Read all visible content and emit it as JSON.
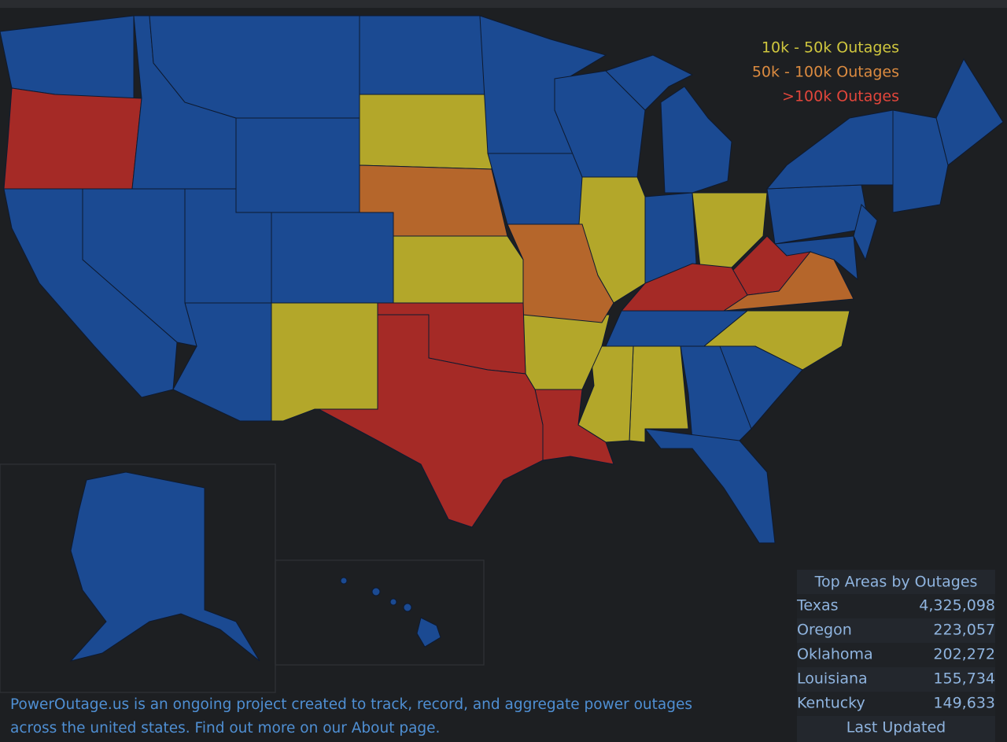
{
  "legend": [
    {
      "label": "10k - 50k Outages",
      "color": "#cfc63e",
      "fill": "#b3a72a"
    },
    {
      "label": "50k - 100k Outages",
      "color": "#dc8b40",
      "fill": "#b5662b"
    },
    {
      "label": ">100k Outages",
      "color": "#e2463b",
      "fill": "#a52a26"
    }
  ],
  "table": {
    "title": "Top Areas by Outages",
    "rows": [
      [
        "Texas",
        "4,325,098"
      ],
      [
        "Oregon",
        "223,057"
      ],
      [
        "Oklahoma",
        "202,272"
      ],
      [
        "Louisiana",
        "155,734"
      ],
      [
        "Kentucky",
        "149,633"
      ]
    ],
    "footer": "Last Updated"
  },
  "description": [
    "PowerOutage.us is an ongoing project created to track, record, and aggregate power outages",
    "across the united states. Find out more on our About page."
  ]
}
